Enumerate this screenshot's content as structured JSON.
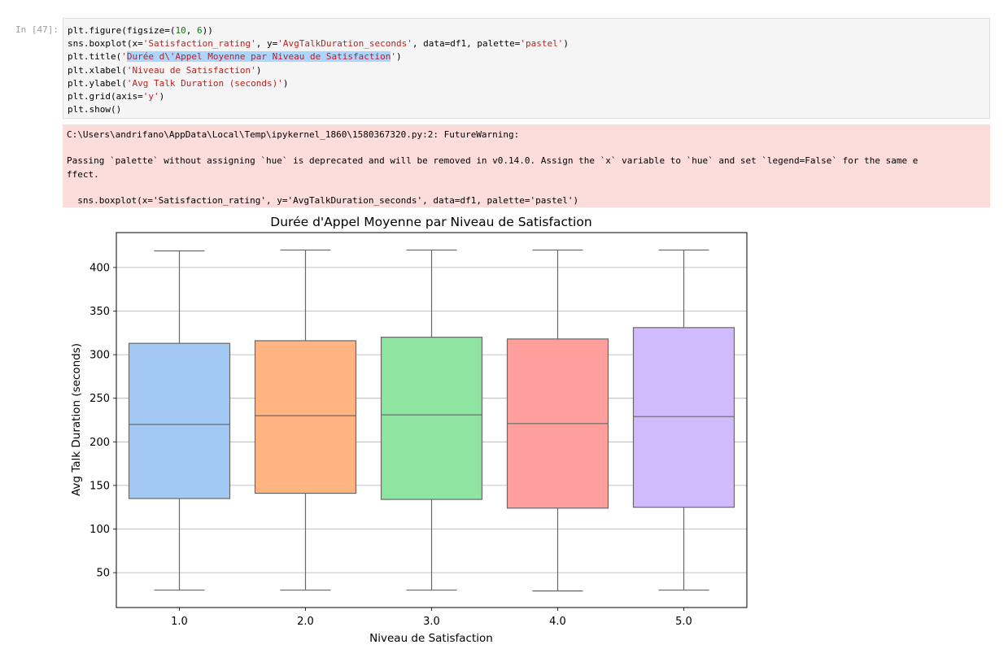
{
  "cell": {
    "prompt": "In [47]:",
    "code_lines": [
      [
        {
          "t": "plt.figure(figsize=("
        },
        {
          "t": "10",
          "c": "num"
        },
        {
          "t": ", "
        },
        {
          "t": "6",
          "c": "num"
        },
        {
          "t": "))"
        }
      ],
      [
        {
          "t": "sns.boxplot(x="
        },
        {
          "t": "'Satisfaction_rating'",
          "c": "str"
        },
        {
          "t": ", y="
        },
        {
          "t": "'AvgTalkDuration_seconds'",
          "c": "str"
        },
        {
          "t": ", data=df1, palette="
        },
        {
          "t": "'pastel'",
          "c": "str"
        },
        {
          "t": ")"
        }
      ],
      [
        {
          "t": "plt.title("
        },
        {
          "t": "'",
          "c": "str"
        },
        {
          "t": "Durée d\\'Appel Moyenne par Niveau de Satisfaction",
          "c": "str hl"
        },
        {
          "t": "'",
          "c": "str"
        },
        {
          "t": ")"
        }
      ],
      [
        {
          "t": "plt.xlabel("
        },
        {
          "t": "'Niveau de Satisfaction'",
          "c": "str"
        },
        {
          "t": ")"
        }
      ],
      [
        {
          "t": "plt.ylabel("
        },
        {
          "t": "'Avg Talk Duration (seconds)'",
          "c": "str"
        },
        {
          "t": ")"
        }
      ],
      [
        {
          "t": "plt.grid(axis="
        },
        {
          "t": "'y'",
          "c": "str"
        },
        {
          "t": ")"
        }
      ],
      [
        {
          "t": "plt.show()"
        }
      ]
    ]
  },
  "warning": {
    "lines": [
      "C:\\Users\\andrifano\\AppData\\Local\\Temp\\ipykernel_1860\\1580367320.py:2: FutureWarning:",
      "",
      "Passing `palette` without assigning `hue` is deprecated and will be removed in v0.14.0. Assign the `x` variable to `hue` and set `legend=False` for the same e",
      "ffect.",
      "",
      "  sns.boxplot(x='Satisfaction_rating', y='AvgTalkDuration_seconds', data=df1, palette='pastel')"
    ]
  },
  "chart_data": {
    "type": "boxplot",
    "title": "Durée d'Appel Moyenne par Niveau de Satisfaction",
    "xlabel": "Niveau de Satisfaction",
    "ylabel": "Avg Talk Duration (seconds)",
    "categories": [
      "1.0",
      "2.0",
      "3.0",
      "4.0",
      "5.0"
    ],
    "ylim": [
      10,
      440
    ],
    "yticks": [
      50,
      100,
      150,
      200,
      250,
      300,
      350,
      400
    ],
    "grid": "y",
    "boxes": [
      {
        "category": "1.0",
        "whisker_low": 30,
        "q1": 135,
        "median": 220,
        "q3": 313,
        "whisker_high": 419,
        "color": "#a1c9f4"
      },
      {
        "category": "2.0",
        "whisker_low": 30,
        "q1": 141,
        "median": 230,
        "q3": 316,
        "whisker_high": 420,
        "color": "#ffb482"
      },
      {
        "category": "3.0",
        "whisker_low": 30,
        "q1": 134,
        "median": 231,
        "q3": 320,
        "whisker_high": 420,
        "color": "#8de5a1"
      },
      {
        "category": "4.0",
        "whisker_low": 29,
        "q1": 124,
        "median": 221,
        "q3": 318,
        "whisker_high": 420,
        "color": "#ff9f9b"
      },
      {
        "category": "5.0",
        "whisker_low": 30,
        "q1": 125,
        "median": 229,
        "q3": 331,
        "whisker_high": 420,
        "color": "#d0bbff"
      }
    ]
  }
}
